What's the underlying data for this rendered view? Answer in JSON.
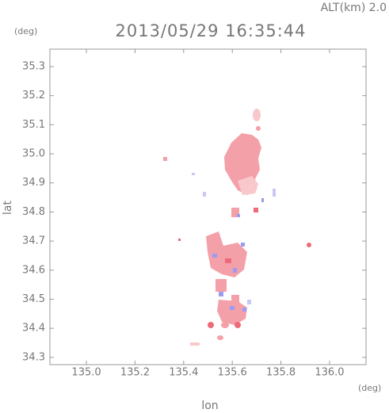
{
  "chart_data": {
    "type": "map",
    "title": "2013/05/29 16:35:44",
    "annotation": "ALT(km)  2.0",
    "x_label": "lon",
    "y_label": "lat",
    "x_unit": "(deg)",
    "y_unit": "(deg)",
    "xlim": [
      134.85,
      136.15
    ],
    "ylim": [
      34.275,
      35.36
    ],
    "xticks": [
      {
        "value": 135,
        "label": "135.0"
      },
      135.2,
      135.4,
      135.6,
      135.8,
      {
        "value": 136,
        "label": "136.0"
      }
    ],
    "yticks": [
      34.3,
      34.4,
      34.5,
      34.6,
      34.7,
      34.8,
      34.9,
      {
        "value": 35,
        "label": "35.0"
      },
      35.1,
      35.2,
      35.3
    ],
    "frame_color": "#999999"
  }
}
